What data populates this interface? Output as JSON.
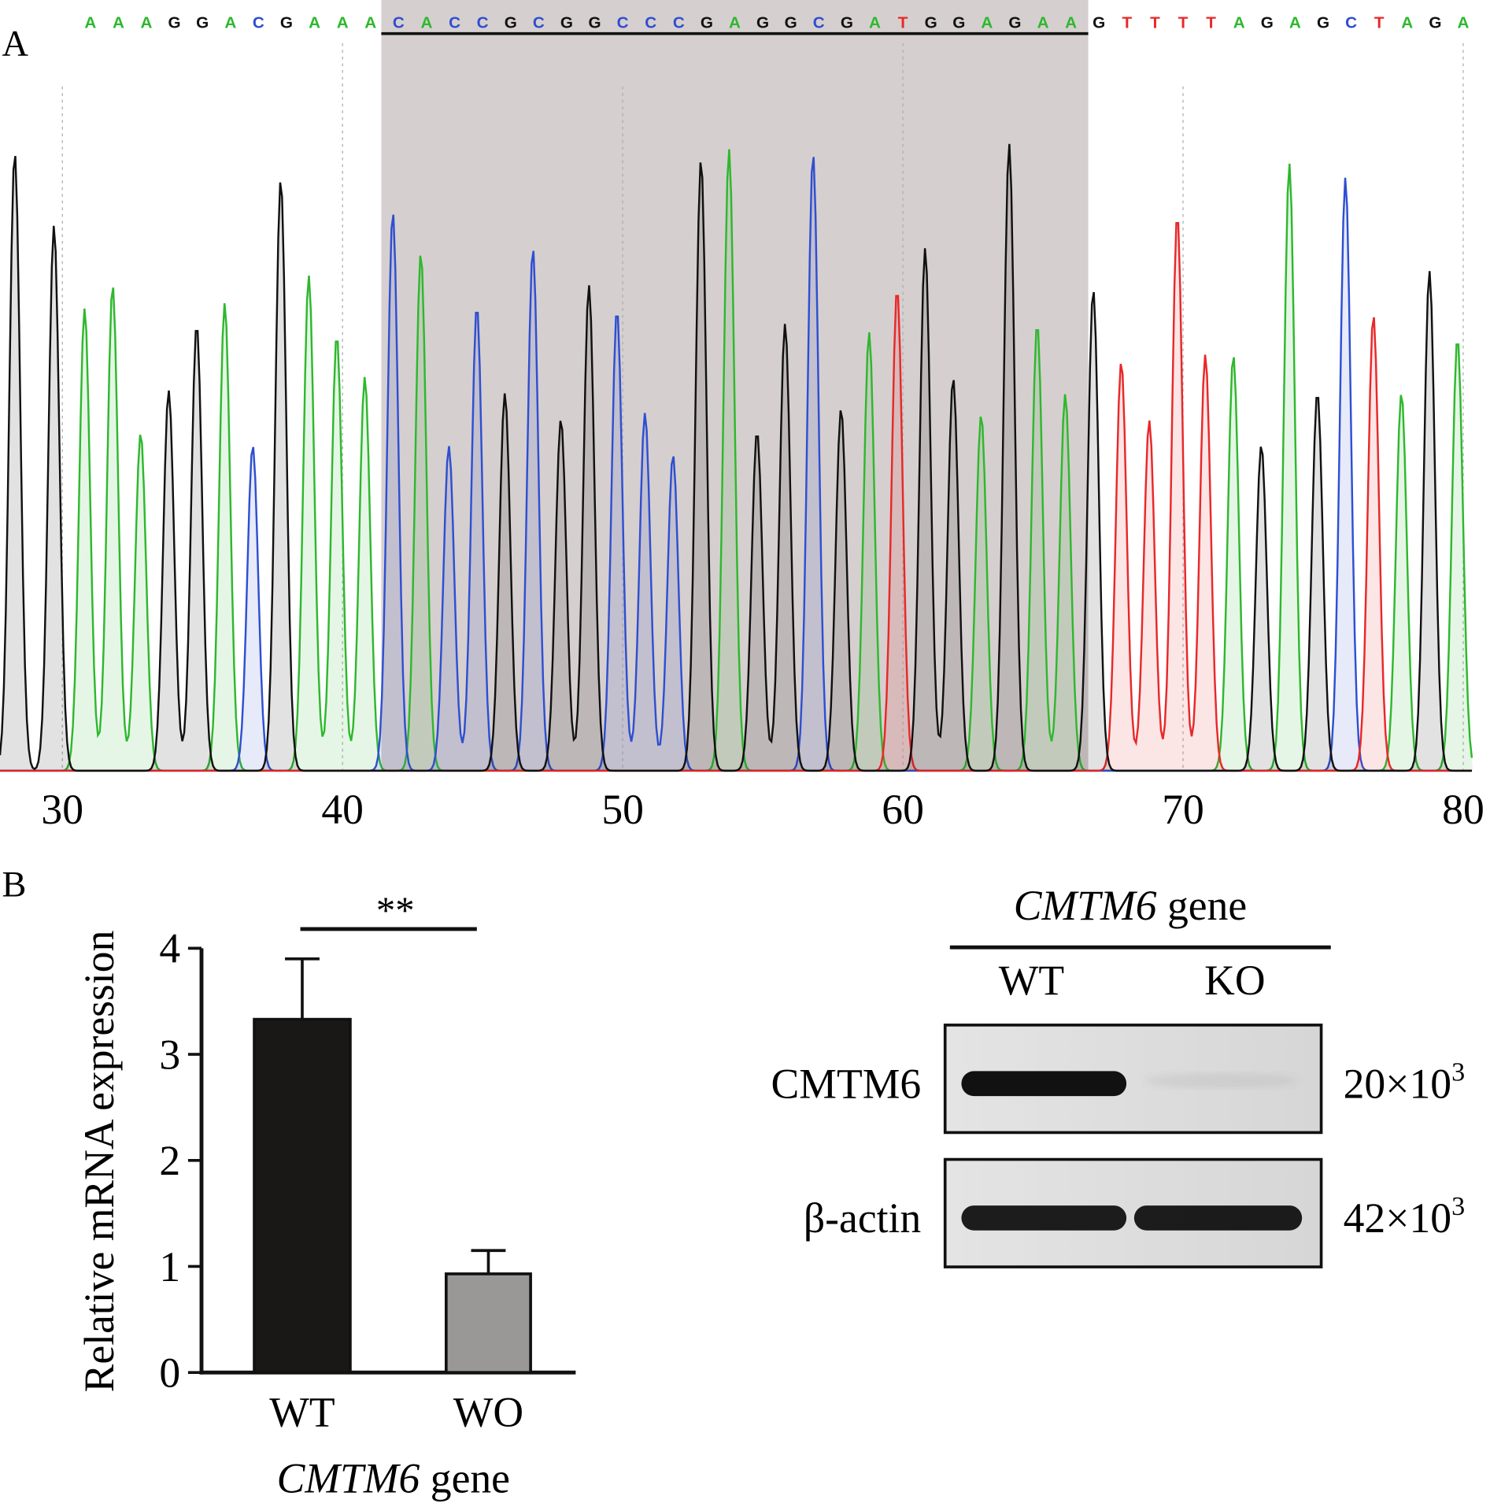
{
  "chart_data": [
    {
      "type": "chromatogram",
      "panel_label": "A",
      "sequence": "AAAGGACGAAACACCGCGGCCCGAGGCGATGGAGAAGTTTTAGAGCTAGA",
      "sequence_start_position": 31,
      "highlighted_region": {
        "start": 42,
        "end": 66,
        "text": "CACCGCGGCCCGAGGCGATGGAGAA",
        "underlined": true,
        "shaded": true
      },
      "x_ticks": [
        "30",
        "40",
        "50",
        "60",
        "70",
        "80"
      ],
      "xlim": [
        28,
        80
      ],
      "base_colors": {
        "A": "#2eb82e",
        "C": "#2f4fd0",
        "G": "#111111",
        "T": "#e8282a"
      },
      "shade_color": "#d6cfcf"
    },
    {
      "type": "bar",
      "panel_label": "B",
      "categories": [
        "WT",
        "WO"
      ],
      "values": [
        3.33,
        0.93
      ],
      "error": [
        0.57,
        0.22
      ],
      "bar_colors": [
        "#1a1717",
        "#9a9797"
      ],
      "ylabel": "Relative mRNA expression",
      "xlabel_italic": "CMTM6",
      "xlabel_rest": " gene",
      "ylim": [
        0,
        4
      ],
      "y_ticks": [
        "0",
        "1",
        "2",
        "3",
        "4"
      ],
      "significance": "**"
    }
  ],
  "blot": {
    "header_italic": "CMTM6",
    "header_rest": " gene",
    "lanes": [
      "WT",
      "KO"
    ],
    "rows": [
      {
        "label": "CMTM6",
        "size": "20×10",
        "exp": "3",
        "intensity": [
          1.0,
          0.05
        ]
      },
      {
        "label": "β-actin",
        "size": "42×10",
        "exp": "3",
        "intensity": [
          0.95,
          0.95
        ]
      }
    ]
  }
}
